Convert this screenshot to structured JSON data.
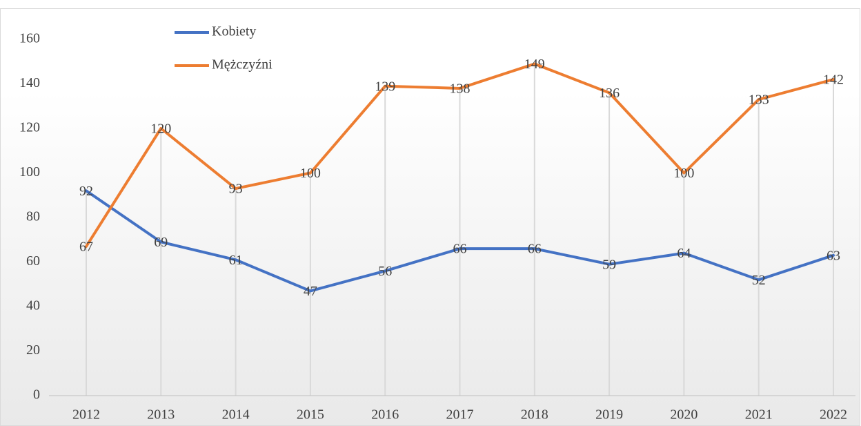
{
  "chart_data": {
    "type": "line",
    "categories": [
      "2012",
      "2013",
      "2014",
      "2015",
      "2016",
      "2017",
      "2018",
      "2019",
      "2020",
      "2021",
      "2022"
    ],
    "series": [
      {
        "name": "Kobiety",
        "color": "#4472c4",
        "values": [
          92,
          69,
          61,
          47,
          56,
          66,
          66,
          59,
          64,
          52,
          63
        ]
      },
      {
        "name": "Mężczyźni",
        "color": "#ed7d31",
        "values": [
          67,
          120,
          93,
          100,
          139,
          138,
          149,
          136,
          100,
          133,
          142
        ]
      }
    ],
    "ylim": [
      0,
      160
    ],
    "yticks": [
      0,
      20,
      40,
      60,
      80,
      100,
      120,
      140,
      160
    ],
    "legend": "top-left"
  }
}
